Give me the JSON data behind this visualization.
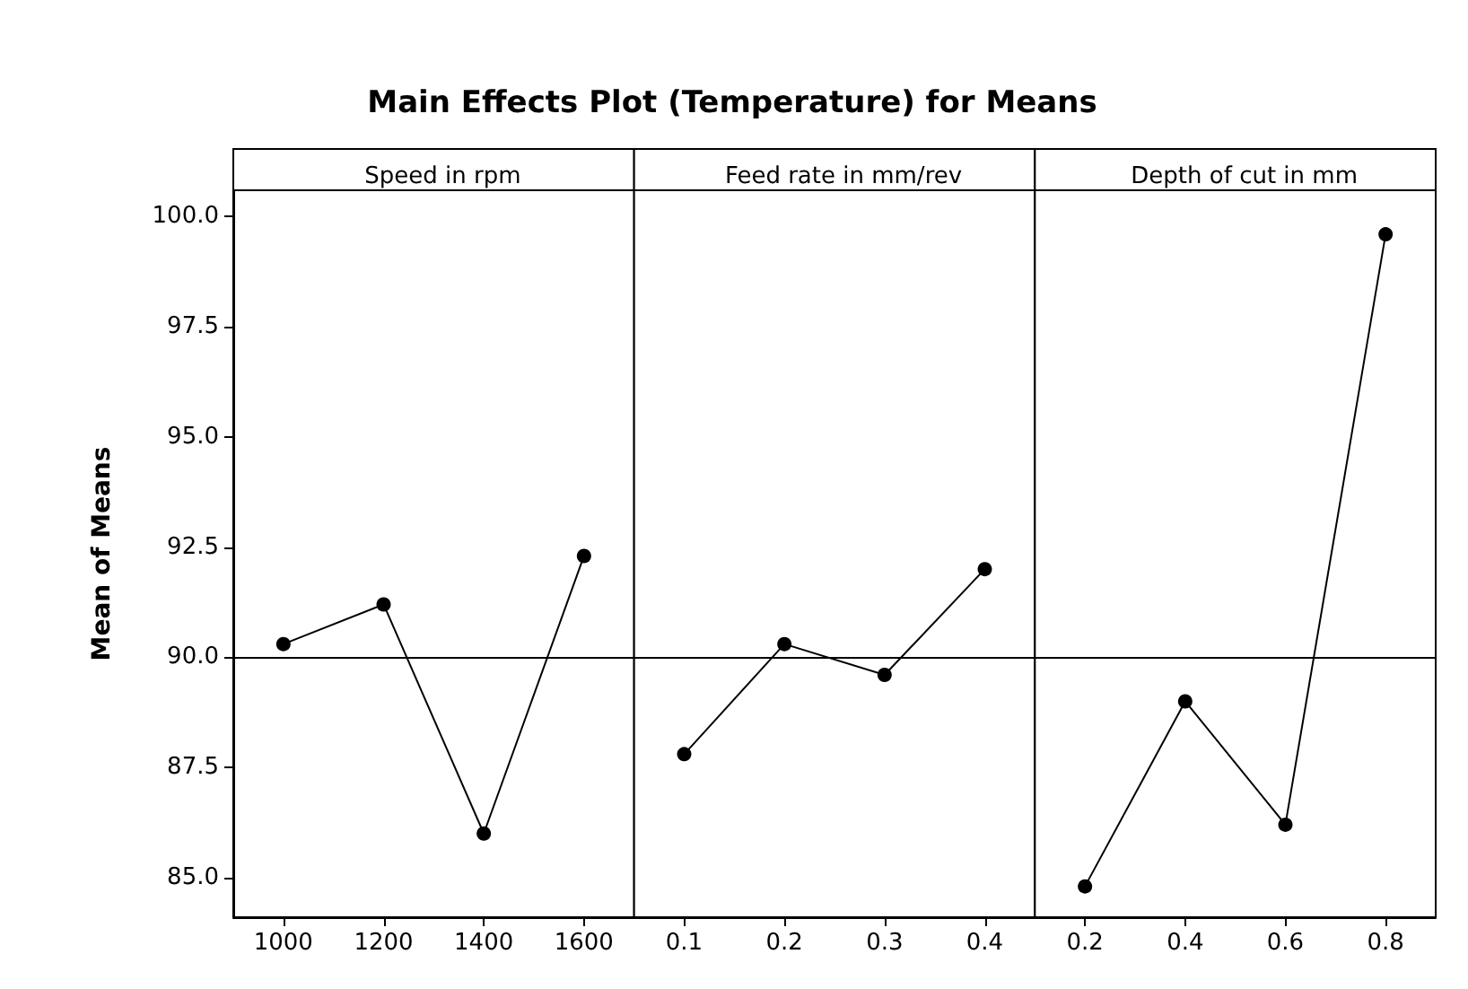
{
  "chart_data": [
    {
      "type": "line",
      "title": "Main Effects Plot (Temperature) for Means",
      "subtitle": "Speed in rpm",
      "ylabel": "Mean of Means",
      "categories": [
        "1000",
        "1200",
        "1400",
        "1600"
      ],
      "series": [
        {
          "color": "#000000",
          "values": [
            90.3,
            91.2,
            86.0,
            92.3
          ]
        }
      ],
      "ylim": [
        84.1,
        100.6
      ],
      "yticks": [
        {
          "value": 85,
          "label": "85.0"
        },
        {
          "value": 87.5,
          "label": "87.5"
        },
        {
          "value": 90,
          "label": "90.0"
        },
        {
          "value": 92.5,
          "label": "92.5"
        },
        {
          "value": 95,
          "label": "95.0"
        },
        {
          "value": 97.5,
          "label": "97.5"
        },
        {
          "value": 100,
          "label": "100.0"
        }
      ],
      "ref_lines": [
        {
          "axis": "y",
          "value": 90,
          "color": "#000000"
        }
      ],
      "marker": "circle",
      "line_style": "solid"
    },
    {
      "type": "line",
      "subtitle": "Feed rate in mm/rev",
      "categories": [
        "0.1",
        "0.2",
        "0.3",
        "0.4"
      ],
      "series": [
        {
          "color": "#000000",
          "values": [
            87.8,
            90.3,
            89.6,
            92.0
          ]
        }
      ],
      "ylim": [
        84.1,
        100.6
      ],
      "ref_lines": [
        {
          "axis": "y",
          "value": 90,
          "color": "#000000"
        }
      ],
      "marker": "circle",
      "line_style": "solid",
      "tick_labels": "x"
    },
    {
      "type": "line",
      "subtitle": "Depth of cut in mm",
      "categories": [
        "0.2",
        "0.4",
        "0.6",
        "0.8"
      ],
      "series": [
        {
          "color": "#000000",
          "values": [
            84.8,
            89.0,
            86.2,
            99.6
          ]
        }
      ],
      "ylim": [
        84.1,
        100.6
      ],
      "ref_lines": [
        {
          "axis": "y",
          "value": 90,
          "color": "#000000"
        }
      ],
      "marker": "circle",
      "line_style": "solid",
      "tick_labels": "x"
    }
  ]
}
